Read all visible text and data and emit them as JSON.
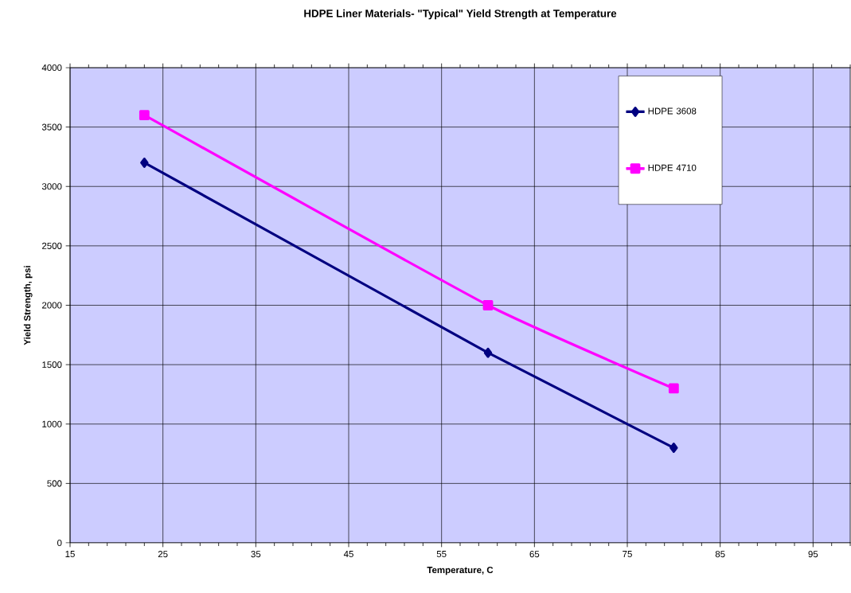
{
  "chart_data": {
    "type": "line",
    "title": "HDPE Liner Materials- \"Typical\" Yield Strength at Temperature",
    "xlabel": "Temperature, C",
    "ylabel": "Yield Strength, psi",
    "x": [
      23,
      60,
      80
    ],
    "series": [
      {
        "name": "HDPE 3608",
        "color": "#000080",
        "values": [
          3200,
          1600,
          800
        ],
        "marker": "diamond"
      },
      {
        "name": "HDPE 4710",
        "color": "#ff00ff",
        "values": [
          3600,
          2000,
          1300
        ],
        "marker": "square"
      }
    ],
    "xlim": [
      15,
      99
    ],
    "ylim": [
      0,
      4000
    ],
    "xticks": [
      15,
      {
        "value": 17,
        "label": null
      },
      {
        "value": 19,
        "label": null
      },
      {
        "value": 21,
        "label": null
      },
      {
        "value": 23,
        "label": null
      },
      25,
      {
        "value": 27,
        "label": null
      },
      {
        "value": 29,
        "label": null
      },
      {
        "value": 31,
        "label": null
      },
      {
        "value": 33,
        "label": null
      },
      35,
      {
        "value": 37,
        "label": null
      },
      {
        "value": 39,
        "label": null
      },
      {
        "value": 41,
        "label": null
      },
      {
        "value": 43,
        "label": null
      },
      45,
      {
        "value": 47,
        "label": null
      },
      {
        "value": 49,
        "label": null
      },
      {
        "value": 51,
        "label": null
      },
      {
        "value": 53,
        "label": null
      },
      55,
      {
        "value": 57,
        "label": null
      },
      {
        "value": 59,
        "label": null
      },
      {
        "value": 61,
        "label": null
      },
      {
        "value": 63,
        "label": null
      },
      65,
      {
        "value": 67,
        "label": null
      },
      {
        "value": 69,
        "label": null
      },
      {
        "value": 71,
        "label": null
      },
      {
        "value": 73,
        "label": null
      },
      75,
      {
        "value": 77,
        "label": null
      },
      {
        "value": 79,
        "label": null
      },
      {
        "value": 81,
        "label": null
      },
      {
        "value": 83,
        "label": null
      },
      85,
      {
        "value": 87,
        "label": null
      },
      {
        "value": 89,
        "label": null
      },
      {
        "value": 91,
        "label": null
      },
      {
        "value": 93,
        "label": null
      },
      95,
      {
        "value": 97,
        "label": null
      },
      {
        "value": 99,
        "label": null
      }
    ],
    "yticks": [
      0,
      500,
      1000,
      1500,
      2000,
      2500,
      3000,
      3500,
      4000
    ],
    "grid": true,
    "legend": "top right",
    "line_style": "solid"
  }
}
